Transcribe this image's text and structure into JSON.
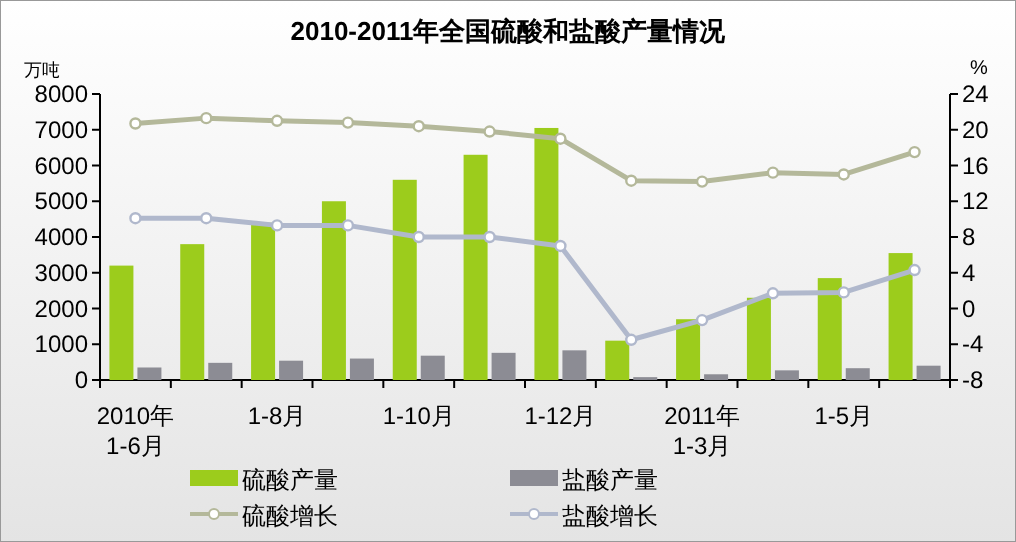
{
  "chart_data": {
    "type": "bar",
    "title": "2010-2011年全国硫酸和盐酸产量情况",
    "ylabel": "万吨",
    "y2label": "%",
    "categories": [
      "2010年\n1-6月",
      null,
      "1-8月",
      null,
      "1-10月",
      null,
      "1-12月",
      null,
      "2011年\n1-3月",
      null,
      "1-5月",
      null
    ],
    "series": [
      {
        "name": "硫酸产量",
        "color": "#9ccc1c",
        "values": [
          3200,
          3800,
          4400,
          5000,
          5600,
          6300,
          7050,
          1100,
          1700,
          2300,
          2850,
          3550
        ]
      },
      {
        "name": "盐酸产量",
        "color": "#8c8c94",
        "values": [
          350,
          480,
          540,
          600,
          680,
          760,
          830,
          80,
          160,
          270,
          330,
          400
        ]
      },
      {
        "name": "硫酸增长",
        "type": "line",
        "axis": "y2",
        "color": "#b4b89a",
        "values": [
          20.7,
          21.3,
          21.0,
          20.8,
          20.4,
          19.8,
          19.0,
          14.3,
          14.2,
          15.2,
          15.0,
          17.5
        ]
      },
      {
        "name": "盐酸增长",
        "type": "line",
        "axis": "y2",
        "color": "#b0b8cc",
        "values": [
          10.1,
          10.1,
          9.3,
          9.3,
          8.0,
          8.0,
          7.0,
          -3.5,
          -1.3,
          1.7,
          1.8,
          4.3
        ]
      }
    ],
    "ylim": [
      0,
      8000
    ],
    "yticks": [
      0,
      1000,
      2000,
      3000,
      4000,
      5000,
      6000,
      7000,
      8000
    ],
    "y2lim": [
      -8,
      24
    ],
    "y2ticks": [
      -8,
      -4,
      0,
      4,
      8,
      12,
      16,
      20,
      24
    ],
    "marker": "circle",
    "legend": "bottom",
    "grid": false
  }
}
